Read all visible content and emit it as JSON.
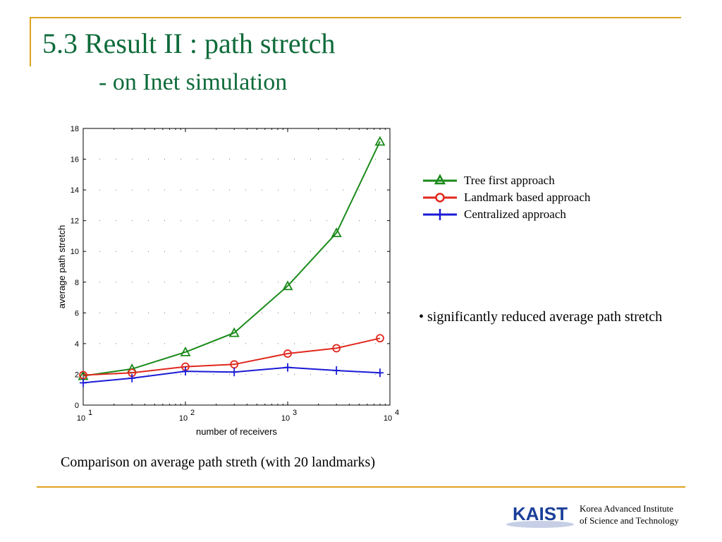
{
  "slide": {
    "title": "5.3 Result II : path stretch",
    "subtitle": "- on Inet simulation",
    "bullet": "• significantly reduced average path stretch",
    "caption": "Comparison on average path streth (with 20 landmarks)",
    "org_line1": "Korea Advanced Institute",
    "org_line2": "of  Science and Technology",
    "logo_text": "KAIST",
    "colors": {
      "title": "#0e6b3a",
      "rule": "#e0a21e",
      "logo": "#1a3f99"
    }
  },
  "chart_data": {
    "type": "line",
    "xlabel": "number of receivers",
    "ylabel": "average path stretch",
    "xscale": "log",
    "xlim": [
      10,
      10000
    ],
    "ylim": [
      0,
      18
    ],
    "yticks": [
      0,
      2,
      4,
      6,
      8,
      10,
      12,
      14,
      16,
      18
    ],
    "xticks": [
      {
        "value": 10,
        "base": "10",
        "exp": "1"
      },
      {
        "value": 100,
        "base": "10",
        "exp": "2"
      },
      {
        "value": 1000,
        "base": "10",
        "exp": "3"
      },
      {
        "value": 10000,
        "base": "10",
        "exp": "4"
      }
    ],
    "grid": "dotted",
    "legend_position": "right, outside plot",
    "x": [
      10,
      30,
      100,
      300,
      1000,
      3000,
      8000
    ],
    "series": [
      {
        "name": "Tree first approach",
        "color": "#1a8a1a",
        "marker": "triangle",
        "values": [
          1.9,
          2.35,
          3.45,
          4.7,
          7.75,
          11.2,
          17.15
        ]
      },
      {
        "name": "Landmark based approach",
        "color": "#e0281e",
        "marker": "circle",
        "values": [
          1.95,
          2.1,
          2.5,
          2.65,
          3.35,
          3.7,
          4.35
        ]
      },
      {
        "name": "Centralized approach",
        "color": "#1a1ad6",
        "marker": "plus",
        "values": [
          1.45,
          1.75,
          2.2,
          2.15,
          2.45,
          2.25,
          2.1
        ]
      }
    ]
  }
}
